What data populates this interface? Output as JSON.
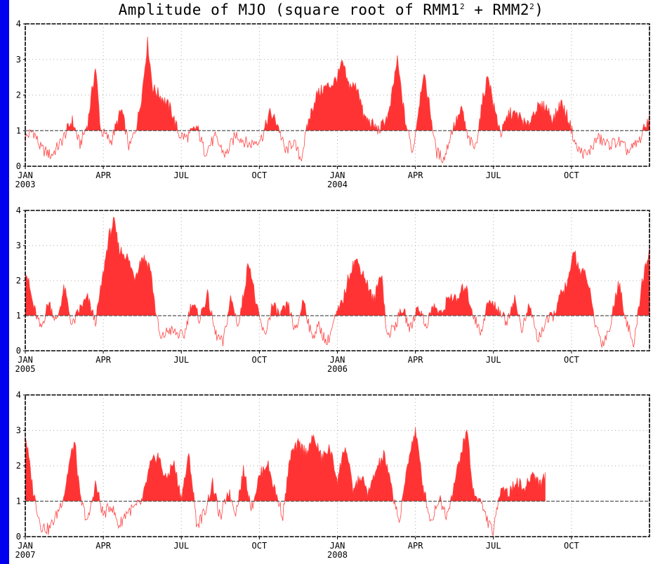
{
  "title": {
    "main": "Amplitude of MJO (square root of RMM1",
    "sup1": "2",
    "plus": " + RMM2",
    "sup2": "2",
    "close": ")"
  },
  "colors": {
    "fill": "#ff3333",
    "line": "#ff4444",
    "threshold": "#555555",
    "frame": "#000000",
    "grid": "#aaaaaa",
    "background": "#0000ee"
  },
  "chart_data": [
    {
      "type": "area",
      "yticks": [
        "0",
        "1",
        "2",
        "3",
        "4"
      ],
      "ylim": [
        0,
        4
      ],
      "threshold": 1,
      "month_ticks": [
        "JAN",
        "APR",
        "JUL",
        "OCT",
        "JAN",
        "APR",
        "JUL",
        "OCT"
      ],
      "year_labels": [
        "2003",
        "2004"
      ],
      "x": [
        "2003-01",
        "2003-02",
        "2003-03",
        "2003-04",
        "2003-05",
        "2003-06",
        "2003-07",
        "2003-08",
        "2003-09",
        "2003-10",
        "2003-11",
        "2003-12",
        "2004-01",
        "2004-02",
        "2004-03",
        "2004-04",
        "2004-05",
        "2004-06",
        "2004-07",
        "2004-08",
        "2004-09",
        "2004-10",
        "2004-11",
        "2004-12"
      ],
      "keyframes": [
        [
          0,
          0.8
        ],
        [
          0.3,
          1.0
        ],
        [
          0.6,
          0.5
        ],
        [
          1.0,
          0.3
        ],
        [
          1.4,
          0.7
        ],
        [
          1.8,
          1.3
        ],
        [
          2.1,
          0.6
        ],
        [
          2.4,
          1.2
        ],
        [
          2.7,
          2.8
        ],
        [
          2.9,
          1.0
        ],
        [
          3.3,
          0.7
        ],
        [
          3.7,
          1.6
        ],
        [
          4.0,
          0.5
        ],
        [
          4.3,
          1.2
        ],
        [
          4.5,
          2.1
        ],
        [
          4.7,
          3.5
        ],
        [
          4.9,
          2.2
        ],
        [
          5.3,
          1.9
        ],
        [
          5.6,
          1.6
        ],
        [
          5.9,
          0.9
        ],
        [
          6.2,
          0.8
        ],
        [
          6.6,
          1.1
        ],
        [
          6.9,
          0.4
        ],
        [
          7.3,
          0.8
        ],
        [
          7.7,
          0.3
        ],
        [
          8.1,
          0.9
        ],
        [
          8.6,
          0.6
        ],
        [
          9.1,
          0.8
        ],
        [
          9.4,
          1.5
        ],
        [
          9.7,
          1.2
        ],
        [
          10.0,
          0.4
        ],
        [
          10.3,
          0.7
        ],
        [
          10.6,
          0.2
        ],
        [
          10.9,
          1.3
        ],
        [
          11.2,
          2.0
        ],
        [
          11.5,
          2.2
        ],
        [
          11.8,
          2.3
        ],
        [
          12.0,
          2.5
        ],
        [
          12.2,
          2.9
        ],
        [
          12.4,
          2.3
        ],
        [
          12.8,
          2.2
        ],
        [
          13.0,
          1.4
        ],
        [
          13.3,
          1.2
        ],
        [
          13.6,
          1.0
        ],
        [
          14.0,
          1.5
        ],
        [
          14.3,
          3.0
        ],
        [
          14.6,
          1.3
        ],
        [
          14.9,
          0.4
        ],
        [
          15.3,
          2.6
        ],
        [
          15.5,
          1.9
        ],
        [
          15.8,
          0.4
        ],
        [
          16.1,
          0.2
        ],
        [
          16.4,
          1.0
        ],
        [
          16.8,
          1.6
        ],
        [
          17.0,
          0.8
        ],
        [
          17.3,
          0.5
        ],
        [
          17.6,
          1.9
        ],
        [
          17.8,
          2.6
        ],
        [
          18.0,
          1.7
        ],
        [
          18.3,
          0.9
        ],
        [
          18.6,
          1.5
        ],
        [
          19.0,
          1.4
        ],
        [
          19.3,
          1.1
        ],
        [
          19.6,
          1.6
        ],
        [
          20.0,
          1.7
        ],
        [
          20.3,
          1.3
        ],
        [
          20.6,
          1.8
        ],
        [
          20.9,
          1.3
        ],
        [
          21.2,
          0.5
        ],
        [
          21.6,
          0.3
        ],
        [
          22.0,
          0.8
        ],
        [
          22.4,
          0.6
        ],
        [
          22.8,
          0.7
        ],
        [
          23.2,
          0.4
        ],
        [
          23.6,
          0.7
        ],
        [
          24.0,
          1.4
        ]
      ]
    },
    {
      "type": "area",
      "yticks": [
        "0",
        "1",
        "2",
        "3",
        "4"
      ],
      "ylim": [
        0,
        4
      ],
      "threshold": 1,
      "month_ticks": [
        "JAN",
        "APR",
        "JUL",
        "OCT",
        "JAN",
        "APR",
        "JUL",
        "OCT"
      ],
      "year_labels": [
        "2005",
        "2006"
      ],
      "x": [
        "2005-01",
        "2005-02",
        "2005-03",
        "2005-04",
        "2005-05",
        "2005-06",
        "2005-07",
        "2005-08",
        "2005-09",
        "2005-10",
        "2005-11",
        "2005-12",
        "2006-01",
        "2006-02",
        "2006-03",
        "2006-04",
        "2006-05",
        "2006-06",
        "2006-07",
        "2006-08",
        "2006-09",
        "2006-10",
        "2006-11",
        "2006-12"
      ],
      "keyframes": [
        [
          0,
          2.4
        ],
        [
          0.3,
          1.3
        ],
        [
          0.6,
          0.6
        ],
        [
          0.9,
          1.4
        ],
        [
          1.2,
          0.8
        ],
        [
          1.5,
          1.8
        ],
        [
          1.8,
          0.7
        ],
        [
          2.1,
          1.2
        ],
        [
          2.4,
          1.5
        ],
        [
          2.7,
          0.8
        ],
        [
          3.0,
          2.2
        ],
        [
          3.2,
          3.2
        ],
        [
          3.4,
          3.7
        ],
        [
          3.6,
          2.9
        ],
        [
          3.9,
          2.7
        ],
        [
          4.2,
          2.1
        ],
        [
          4.5,
          2.7
        ],
        [
          4.8,
          2.4
        ],
        [
          5.0,
          1.2
        ],
        [
          5.2,
          0.3
        ],
        [
          5.5,
          0.6
        ],
        [
          5.8,
          0.5
        ],
        [
          6.1,
          0.4
        ],
        [
          6.4,
          1.4
        ],
        [
          6.7,
          0.9
        ],
        [
          7.0,
          1.6
        ],
        [
          7.3,
          0.5
        ],
        [
          7.6,
          0.2
        ],
        [
          7.9,
          1.5
        ],
        [
          8.2,
          0.7
        ],
        [
          8.6,
          2.6
        ],
        [
          8.9,
          1.2
        ],
        [
          9.2,
          0.4
        ],
        [
          9.5,
          1.3
        ],
        [
          9.8,
          1.0
        ],
        [
          10.1,
          1.3
        ],
        [
          10.4,
          0.5
        ],
        [
          10.7,
          1.5
        ],
        [
          11.0,
          0.4
        ],
        [
          11.3,
          0.7
        ],
        [
          11.6,
          0.2
        ],
        [
          11.9,
          0.9
        ],
        [
          12.2,
          1.4
        ],
        [
          12.5,
          2.3
        ],
        [
          12.7,
          2.6
        ],
        [
          13.0,
          2.2
        ],
        [
          13.4,
          1.4
        ],
        [
          13.7,
          2.3
        ],
        [
          13.9,
          0.4
        ],
        [
          14.2,
          0.7
        ],
        [
          14.5,
          1.2
        ],
        [
          14.8,
          0.6
        ],
        [
          15.1,
          1.3
        ],
        [
          15.4,
          0.7
        ],
        [
          15.7,
          1.3
        ],
        [
          16.0,
          1.0
        ],
        [
          16.3,
          1.6
        ],
        [
          16.6,
          1.4
        ],
        [
          16.9,
          1.9
        ],
        [
          17.2,
          1.1
        ],
        [
          17.5,
          0.5
        ],
        [
          17.8,
          1.4
        ],
        [
          18.2,
          1.2
        ],
        [
          18.5,
          0.8
        ],
        [
          18.8,
          1.5
        ],
        [
          19.1,
          0.6
        ],
        [
          19.4,
          1.3
        ],
        [
          19.7,
          0.3
        ],
        [
          20.0,
          0.8
        ],
        [
          20.3,
          1.0
        ],
        [
          20.6,
          1.6
        ],
        [
          20.9,
          2.0
        ],
        [
          21.1,
          2.9
        ],
        [
          21.3,
          2.3
        ],
        [
          21.6,
          2.1
        ],
        [
          21.9,
          0.8
        ],
        [
          22.2,
          0.2
        ],
        [
          22.5,
          0.7
        ],
        [
          22.8,
          2.0
        ],
        [
          23.1,
          0.9
        ],
        [
          23.4,
          0.1
        ],
        [
          23.7,
          1.9
        ],
        [
          24.0,
          2.9
        ]
      ]
    },
    {
      "type": "area",
      "yticks": [
        "0",
        "1",
        "2",
        "3",
        "4"
      ],
      "ylim": [
        0,
        4
      ],
      "threshold": 1,
      "month_ticks": [
        "JAN",
        "APR",
        "JUL",
        "OCT",
        "JAN",
        "APR",
        "JUL",
        "OCT"
      ],
      "year_labels": [
        "2007",
        "2008"
      ],
      "x": [
        "2007-01",
        "2007-02",
        "2007-03",
        "2007-04",
        "2007-05",
        "2007-06",
        "2007-07",
        "2007-08",
        "2007-09",
        "2007-10",
        "2007-11",
        "2007-12",
        "2008-01",
        "2008-02",
        "2008-03",
        "2008-04",
        "2008-05",
        "2008-06",
        "2008-07",
        "2008-08",
        "2008-09"
      ],
      "keyframes": [
        [
          0,
          2.9
        ],
        [
          0.3,
          1.3
        ],
        [
          0.6,
          0.3
        ],
        [
          0.9,
          0.2
        ],
        [
          1.2,
          0.6
        ],
        [
          1.5,
          1.2
        ],
        [
          1.7,
          2.1
        ],
        [
          1.9,
          2.7
        ],
        [
          2.1,
          1.1
        ],
        [
          2.4,
          0.4
        ],
        [
          2.7,
          1.5
        ],
        [
          3.0,
          0.6
        ],
        [
          3.3,
          0.9
        ],
        [
          3.6,
          0.3
        ],
        [
          3.9,
          0.7
        ],
        [
          4.2,
          0.8
        ],
        [
          4.5,
          1.0
        ],
        [
          4.8,
          2.0
        ],
        [
          5.1,
          2.3
        ],
        [
          5.4,
          1.6
        ],
        [
          5.7,
          2.1
        ],
        [
          6.0,
          1.1
        ],
        [
          6.3,
          2.3
        ],
        [
          6.6,
          0.3
        ],
        [
          6.9,
          0.7
        ],
        [
          7.2,
          1.5
        ],
        [
          7.5,
          0.5
        ],
        [
          7.8,
          1.3
        ],
        [
          8.1,
          0.7
        ],
        [
          8.4,
          1.9
        ],
        [
          8.7,
          0.8
        ],
        [
          9.0,
          1.7
        ],
        [
          9.3,
          2.1
        ],
        [
          9.6,
          1.3
        ],
        [
          9.9,
          0.6
        ],
        [
          10.2,
          2.3
        ],
        [
          10.5,
          2.6
        ],
        [
          10.8,
          2.4
        ],
        [
          11.1,
          2.8
        ],
        [
          11.4,
          2.2
        ],
        [
          11.7,
          2.5
        ],
        [
          12.0,
          1.6
        ],
        [
          12.3,
          2.6
        ],
        [
          12.6,
          1.3
        ],
        [
          12.9,
          1.7
        ],
        [
          13.2,
          1.2
        ],
        [
          13.5,
          1.9
        ],
        [
          13.8,
          2.3
        ],
        [
          14.1,
          1.3
        ],
        [
          14.4,
          0.4
        ],
        [
          14.7,
          2.1
        ],
        [
          15.0,
          3.0
        ],
        [
          15.3,
          1.4
        ],
        [
          15.6,
          0.4
        ],
        [
          15.9,
          1.1
        ],
        [
          16.2,
          0.6
        ],
        [
          16.5,
          1.5
        ],
        [
          16.8,
          2.5
        ],
        [
          17.0,
          3.0
        ],
        [
          17.2,
          1.3
        ],
        [
          17.5,
          1.0
        ],
        [
          17.8,
          0.4
        ],
        [
          18.0,
          0.1
        ],
        [
          18.3,
          1.5
        ],
        [
          18.6,
          1.2
        ],
        [
          18.9,
          1.6
        ],
        [
          19.2,
          1.3
        ],
        [
          19.5,
          1.8
        ],
        [
          19.8,
          1.5
        ],
        [
          20.0,
          1.7
        ]
      ]
    }
  ]
}
